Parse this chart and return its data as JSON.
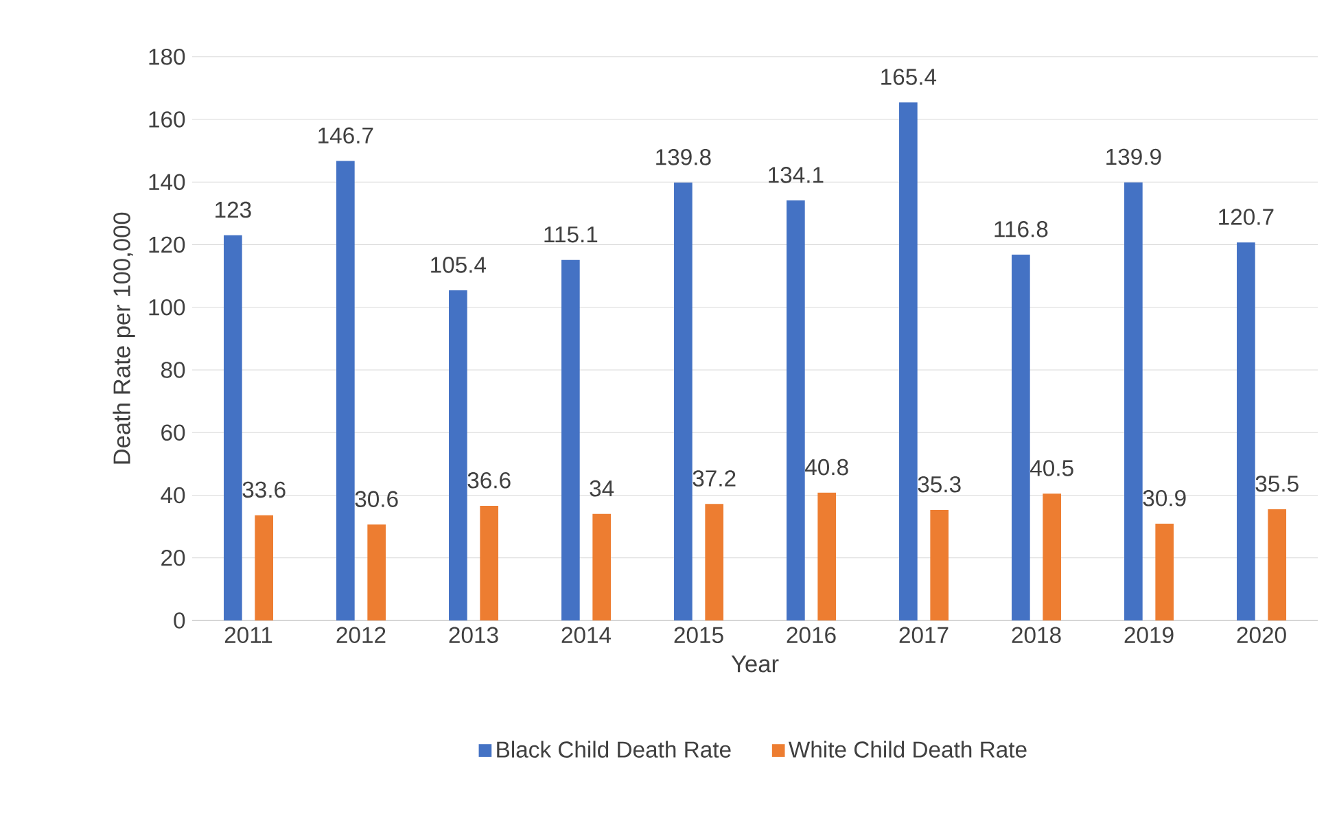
{
  "chart_data": {
    "type": "bar",
    "xlabel": "Year",
    "ylabel": "Death Rate per 100,000",
    "categories": [
      "2011",
      "2012",
      "2013",
      "2014",
      "2015",
      "2016",
      "2017",
      "2018",
      "2019",
      "2020"
    ],
    "series": [
      {
        "name": "Black Child Death Rate",
        "color": "#4472c4",
        "values": [
          123,
          146.7,
          105.4,
          115.1,
          139.8,
          134.1,
          165.4,
          116.8,
          139.9,
          120.7
        ]
      },
      {
        "name": "White Child Death Rate",
        "color": "#ed7d31",
        "values": [
          33.6,
          30.6,
          36.6,
          34,
          37.2,
          40.8,
          35.3,
          40.5,
          30.9,
          35.5
        ]
      }
    ],
    "ylim": [
      0,
      180
    ],
    "yticks": [
      0,
      20,
      40,
      60,
      80,
      100,
      120,
      140,
      160,
      180
    ],
    "grid": "y",
    "legend": "bottom",
    "data_labels": true
  }
}
